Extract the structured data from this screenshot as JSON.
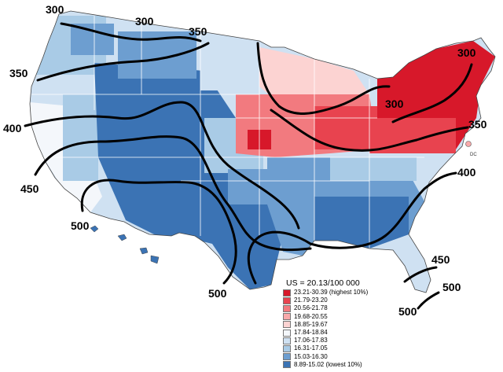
{
  "legend": {
    "title": "US = 20.13/100 000",
    "items": [
      {
        "label": "23.21-30.39 (highest 10%)",
        "color": "#d7182a"
      },
      {
        "label": "21.79-23.20",
        "color": "#e8434f"
      },
      {
        "label": "20.56-21.78",
        "color": "#f27a7f"
      },
      {
        "label": "19.68-20.55",
        "color": "#f8a9aa"
      },
      {
        "label": "18.85-19.67",
        "color": "#fcd3d2"
      },
      {
        "label": "17.84-18.84",
        "color": "#f4f7fb"
      },
      {
        "label": "17.06-17.83",
        "color": "#cfe1f2"
      },
      {
        "label": "16.31-17.05",
        "color": "#a9cbe6"
      },
      {
        "label": "15.03-16.30",
        "color": "#6d9ed0"
      },
      {
        "label": "8.89-15.02 (lowest 10%)",
        "color": "#3b73b4"
      }
    ]
  },
  "contour_labels": {
    "nw_300": "300",
    "nw_300b": "300",
    "n_350": "350",
    "w_350": "350",
    "w_400": "400",
    "w_450": "450",
    "sw_500": "500",
    "ne_300": "300",
    "e_300": "300",
    "e_350": "350",
    "e_400": "400",
    "s_500": "500",
    "se_450": "450",
    "se_500": "500",
    "se_500b": "500"
  },
  "dc_label": "DC",
  "colors": {
    "low_blue": "#3b73b4",
    "high_red": "#d7182a",
    "contour": "#000000"
  }
}
